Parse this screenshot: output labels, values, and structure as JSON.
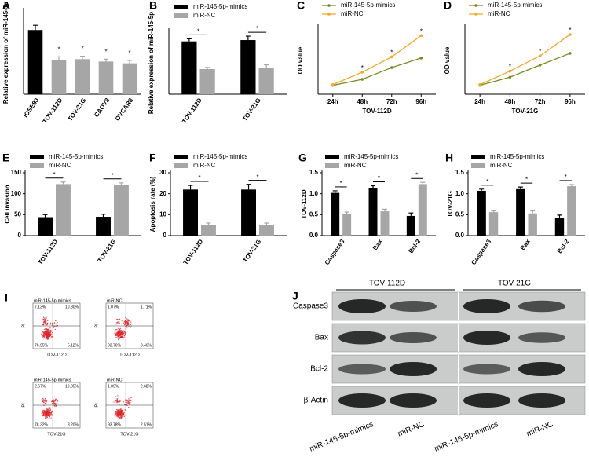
{
  "chart_data": [
    {
      "panel": "A",
      "type": "bar",
      "ylabel": "Relative expression of miR-145-5p",
      "categories": [
        "IOSE80",
        "TOV-112D",
        "TOV-21G",
        "CAOV3",
        "OVCAR3"
      ],
      "values": [
        1.08,
        0.58,
        0.59,
        0.55,
        0.52
      ],
      "errors": [
        0.08,
        0.05,
        0.05,
        0.04,
        0.05
      ],
      "colors": [
        "#000000",
        "#a6a6a6",
        "#a6a6a6",
        "#a6a6a6",
        "#a6a6a6"
      ],
      "significance": [
        null,
        "*",
        "*",
        "*",
        "*"
      ],
      "ylim": [
        0,
        1.4
      ]
    },
    {
      "panel": "B",
      "type": "bar",
      "ylabel": "Relative expression of miR-145-5p",
      "categories": [
        "TOV-112D",
        "TOV-21G"
      ],
      "series": [
        {
          "name": "miR-145-5p-mimics",
          "color": "#000000",
          "values": [
            1.22,
            1.25
          ],
          "errors": [
            0.06,
            0.09
          ]
        },
        {
          "name": "miR-NC",
          "color": "#a6a6a6",
          "values": [
            0.58,
            0.6
          ],
          "errors": [
            0.04,
            0.08
          ]
        }
      ],
      "significance": [
        "*",
        "*"
      ],
      "ylim": [
        0,
        1.45
      ]
    },
    {
      "panel": "C",
      "type": "line",
      "ylabel": "OD value",
      "xlabel": "TOV-112D",
      "categories": [
        "24h",
        "48h",
        "72h",
        "96h"
      ],
      "series": [
        {
          "name": "miR-145-5p-mimics",
          "color": "#7a8a22",
          "values": [
            0.25,
            0.42,
            0.75,
            1.02
          ]
        },
        {
          "name": "miR-NC",
          "color": "#f5a623",
          "values": [
            0.27,
            0.62,
            1.05,
            1.65
          ]
        }
      ],
      "significance": [
        null,
        "*",
        "*",
        "*"
      ],
      "ylim": [
        0,
        1.9
      ]
    },
    {
      "panel": "D",
      "type": "line",
      "ylabel": "OD value",
      "xlabel": "TOV-21G",
      "categories": [
        "24h",
        "48h",
        "72h",
        "96h"
      ],
      "series": [
        {
          "name": "miR-145-5p-mimics",
          "color": "#7a8a22",
          "values": [
            0.25,
            0.48,
            0.82,
            1.15
          ]
        },
        {
          "name": "miR-NC",
          "color": "#f5a623",
          "values": [
            0.27,
            0.65,
            1.08,
            1.68
          ]
        }
      ],
      "significance": [
        null,
        "*",
        "*",
        "*"
      ],
      "ylim": [
        0,
        1.9
      ]
    },
    {
      "panel": "E",
      "type": "bar",
      "ylabel": "Cell invasion",
      "categories": [
        "TOV-112D",
        "TOV-21G"
      ],
      "series": [
        {
          "name": "miR-145-5p-mimics",
          "color": "#000000",
          "values": [
            44,
            45
          ],
          "errors": [
            6,
            6
          ]
        },
        {
          "name": "miR-NC",
          "color": "#a6a6a6",
          "values": [
            123,
            120
          ],
          "errors": [
            5,
            6
          ]
        }
      ],
      "significance": [
        "*",
        "*"
      ],
      "ylim": [
        0,
        150
      ],
      "yticks": [
        0,
        50,
        100,
        150
      ]
    },
    {
      "panel": "F",
      "type": "bar",
      "ylabel": "Apoptosis rate (%)",
      "categories": [
        "TOV-112D",
        "TOV-21G"
      ],
      "series": [
        {
          "name": "miR-145-5p-mimics",
          "color": "#000000",
          "values": [
            22,
            22
          ],
          "errors": [
            2,
            2.5
          ]
        },
        {
          "name": "miR-NC",
          "color": "#a6a6a6",
          "values": [
            5,
            5
          ],
          "errors": [
            1,
            1
          ]
        }
      ],
      "significance": [
        "*",
        "*"
      ],
      "ylim": [
        0,
        30
      ],
      "yticks": [
        0,
        10,
        20,
        30
      ]
    },
    {
      "panel": "G",
      "type": "bar",
      "ylabel": "TOV-112D",
      "categories": [
        "Caspase3",
        "Bax",
        "Bcl-2"
      ],
      "series": [
        {
          "name": "miR-145-5p-mimics",
          "color": "#000000",
          "values": [
            1.02,
            1.13,
            0.47
          ],
          "errors": [
            0.05,
            0.06,
            0.07
          ]
        },
        {
          "name": "miR-NC",
          "color": "#a6a6a6",
          "values": [
            0.52,
            0.58,
            1.23
          ],
          "errors": [
            0.04,
            0.05,
            0.04
          ]
        }
      ],
      "significance": [
        "*",
        "*",
        "*"
      ],
      "ylim": [
        0,
        1.5
      ],
      "yticks": [
        {
          "value": 0,
          "label": "0.0"
        },
        0.5,
        {
          "value": 1,
          "label": "1.0"
        },
        1.5
      ]
    },
    {
      "panel": "H",
      "type": "bar",
      "ylabel": "TOV-21G",
      "categories": [
        "Caspase3",
        "Bax",
        "Bcl-2"
      ],
      "series": [
        {
          "name": "miR-145-5p-mimics",
          "color": "#000000",
          "values": [
            1.07,
            1.11,
            0.43
          ],
          "errors": [
            0.04,
            0.05,
            0.06
          ]
        },
        {
          "name": "miR-NC",
          "color": "#a6a6a6",
          "values": [
            0.56,
            0.53,
            1.18
          ],
          "errors": [
            0.03,
            0.06,
            0.04
          ]
        }
      ],
      "significance": [
        "*",
        "*",
        "*"
      ],
      "ylim": [
        0,
        1.5
      ],
      "yticks": [
        {
          "value": 0,
          "label": "0.0"
        },
        0.5,
        {
          "value": 1,
          "label": "1.0"
        },
        1.5
      ]
    }
  ],
  "flow_panel": {
    "panel": "I",
    "y_axis": "PI",
    "plots": [
      {
        "title": "miR-145-5p-mimics",
        "cell_line": "TOV-112D",
        "q1": "7.13%",
        "q2": "10.80%",
        "q3": "5.12%",
        "q4": "76.95%"
      },
      {
        "title": "miR-NC",
        "cell_line": "TOV-112D",
        "q1": "1.07%",
        "q2": "1.71%",
        "q3": "3.46%",
        "q4": "93.76%"
      },
      {
        "title": "miR-145-5p-mimics",
        "cell_line": "TOV-21G",
        "q1": "2.67%",
        "q2": "10.85%",
        "q3": "8.20%",
        "q4": "78.32%"
      },
      {
        "title": "miR-NC",
        "cell_line": "TOV-21G",
        "q1": "1.09%",
        "q2": "2.68%",
        "q3": "2.51%",
        "q4": "93.78%"
      }
    ]
  },
  "western_blot": {
    "panel": "J",
    "groups": [
      "TOV-112D",
      "TOV-21G"
    ],
    "rows": [
      "Caspase3",
      "Bax",
      "Bcl-2",
      "β-Actin"
    ],
    "columns": [
      "miR-145-5p-mimics",
      "miR-NC",
      "miR-145-5p-mimics",
      "miR-NC"
    ]
  }
}
